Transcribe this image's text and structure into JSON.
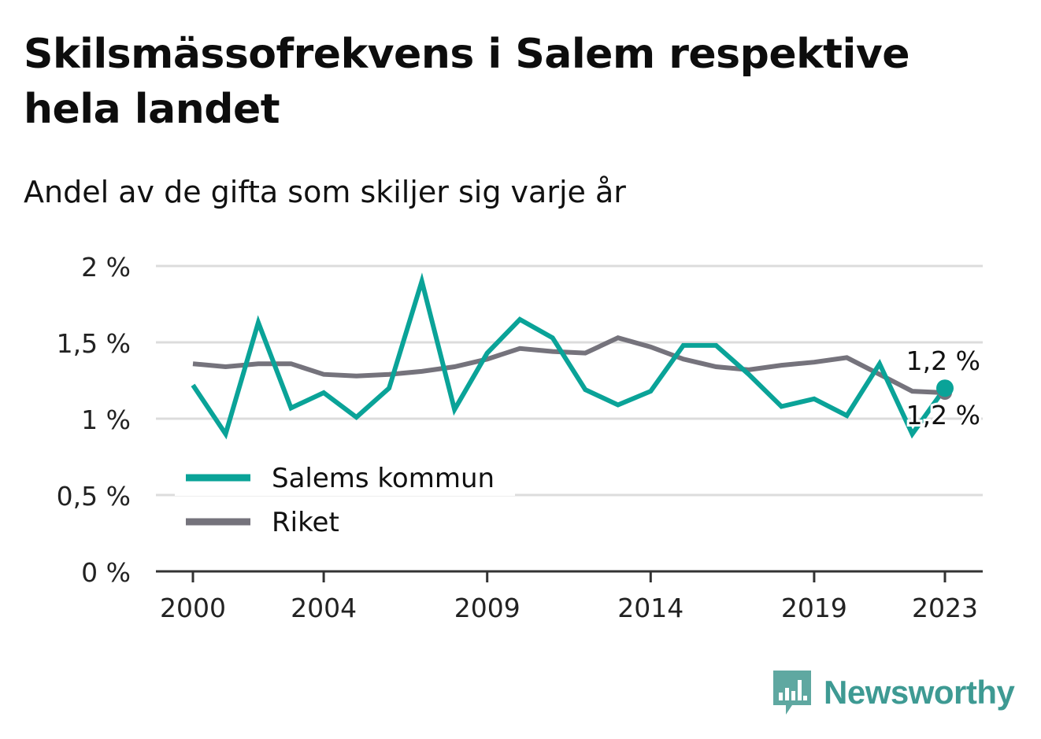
{
  "header": {
    "title": "Skilsmässofrekvens i Salem respektive hela landet",
    "subtitle": "Andel av de gifta som skiljer sig varje år"
  },
  "brand": {
    "name": "Newsworthy",
    "icon": "newsworthy-logo-icon",
    "color": "#3e9a93"
  },
  "chart_data": {
    "type": "line",
    "title": "Skilsmässofrekvens i Salem respektive hela landet",
    "subtitle": "Andel av de gifta som skiljer sig varje år",
    "xlabel": "",
    "ylabel": "",
    "x": [
      2000,
      2001,
      2002,
      2003,
      2004,
      2005,
      2006,
      2007,
      2008,
      2009,
      2010,
      2011,
      2012,
      2013,
      2014,
      2015,
      2016,
      2017,
      2018,
      2019,
      2020,
      2021,
      2022,
      2023
    ],
    "x_ticks": [
      "2000",
      "2004",
      "2009",
      "2014",
      "2019",
      "2023"
    ],
    "y_ticks": [
      "0 %",
      "0,5 %",
      "1 %",
      "1,5 %",
      "2 %"
    ],
    "y_tick_values": [
      0,
      0.5,
      1,
      1.5,
      2
    ],
    "ylim": [
      0,
      2
    ],
    "grid": true,
    "legend": "bottom-left",
    "series": [
      {
        "name": "Salems kommun",
        "color": "#0aa398",
        "values": [
          1.22,
          0.9,
          1.63,
          1.07,
          1.17,
          1.01,
          1.2,
          1.9,
          1.06,
          1.43,
          1.65,
          1.53,
          1.19,
          1.09,
          1.18,
          1.48,
          1.48,
          1.29,
          1.08,
          1.13,
          1.02,
          1.36,
          0.9,
          1.2
        ],
        "end_label": "1,2 %"
      },
      {
        "name": "Riket",
        "color": "#75737c",
        "values": [
          1.36,
          1.34,
          1.36,
          1.36,
          1.29,
          1.28,
          1.29,
          1.31,
          1.34,
          1.39,
          1.46,
          1.44,
          1.43,
          1.53,
          1.47,
          1.39,
          1.34,
          1.32,
          1.35,
          1.37,
          1.4,
          1.29,
          1.18,
          1.17
        ],
        "end_label": "1,2 %"
      }
    ]
  }
}
